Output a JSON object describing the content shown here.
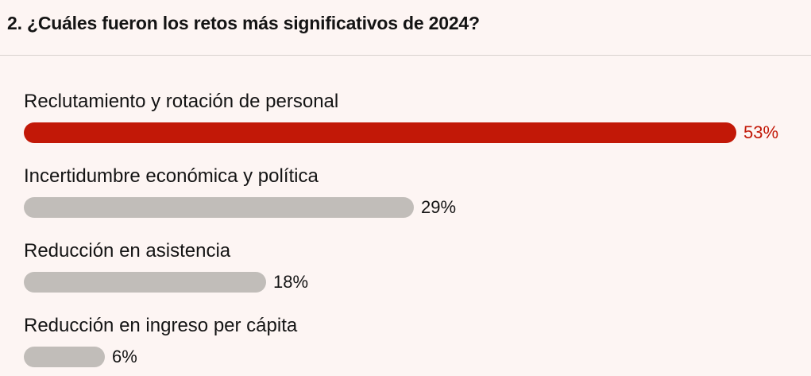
{
  "title": "2. ¿Cuáles fueron los retos más significativos de 2024?",
  "colors": {
    "highlight": "#c21807",
    "default_bar": "#c1bdb9",
    "highlight_text": "#c21807",
    "default_text": "#141414"
  },
  "chart_data": {
    "type": "bar",
    "orientation": "horizontal",
    "categories": [
      "Reclutamiento y rotación de personal",
      "Incertidumbre económica y política",
      "Reducción en asistencia",
      "Reducción en ingreso per cápita"
    ],
    "values": [
      53,
      29,
      18,
      6
    ],
    "value_labels": [
      "53%",
      "29%",
      "18%",
      "6%"
    ],
    "highlight_index": 0,
    "unit": "%",
    "xlim": [
      0,
      53
    ],
    "grid": false,
    "legend": "none"
  }
}
